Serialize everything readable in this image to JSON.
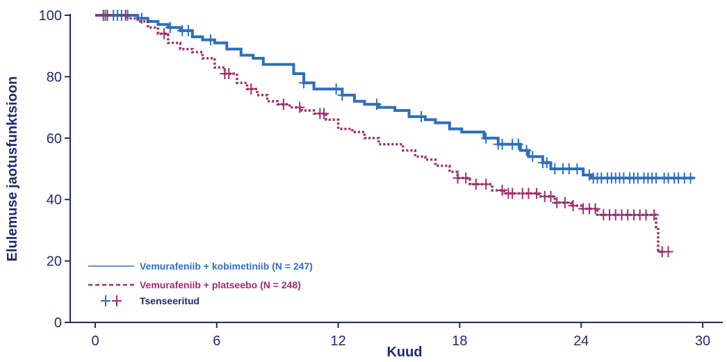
{
  "chart_data": {
    "type": "line",
    "title": "",
    "xlabel": "Kuud",
    "ylabel": "Elulemuse jaotusfunktsioon",
    "xlim": [
      0,
      30
    ],
    "ylim": [
      0,
      100
    ],
    "x_ticks": [
      0,
      6,
      12,
      18,
      24,
      30
    ],
    "y_ticks": [
      0,
      20,
      40,
      60,
      80,
      100
    ],
    "grid": false,
    "legend_position": "bottom-left",
    "series": [
      {
        "name": "Vemurafeniib + kobimetiniib (N = 247)",
        "color": "#2f6fba",
        "line_style": "solid",
        "x": [
          0,
          2.1,
          2.6,
          3.1,
          3.6,
          4.2,
          4.8,
          5.3,
          5.9,
          6.5,
          7.2,
          7.8,
          8.3,
          9.0,
          9.8,
          10.3,
          10.8,
          11.5,
          12.2,
          12.8,
          13.3,
          14.0,
          14.8,
          15.5,
          16.3,
          16.8,
          17.5,
          18.1,
          19.0,
          19.2,
          19.9,
          21.0,
          21.4,
          22.1,
          22.5,
          23.2,
          24.1,
          24.5,
          29.6
        ],
        "y": [
          100,
          99,
          98,
          97,
          96,
          95,
          93,
          92,
          91,
          89,
          87,
          86,
          84,
          84,
          81,
          78,
          76,
          76,
          74,
          72,
          71,
          70,
          69,
          67,
          66,
          65,
          63,
          62,
          62,
          60,
          58,
          56,
          54,
          52,
          50,
          50,
          48,
          47,
          47
        ]
      },
      {
        "name": "Vemurafeniib + platseebo (N = 248)",
        "color": "#9b2d6b",
        "line_style": "dotted",
        "x": [
          0,
          1.6,
          2.1,
          2.6,
          3.1,
          3.6,
          4.2,
          4.8,
          5.3,
          5.9,
          6.4,
          7.0,
          7.5,
          8.0,
          8.5,
          9.0,
          9.6,
          10.2,
          10.8,
          11.4,
          12.0,
          12.7,
          13.3,
          14.0,
          14.6,
          15.2,
          15.8,
          16.3,
          16.8,
          17.5,
          17.9,
          18.5,
          19.0,
          19.6,
          20.2,
          21.0,
          21.9,
          22.7,
          23.5,
          24.0,
          24.8,
          25.5,
          27.2,
          27.7,
          27.8,
          28.1
        ],
        "y": [
          100,
          99,
          98,
          96,
          94,
          91,
          89,
          88,
          86,
          83,
          81,
          78,
          76,
          74,
          72,
          71,
          70,
          69,
          68,
          66,
          63,
          62,
          60,
          58,
          58,
          56,
          54,
          53,
          51,
          49,
          47,
          45,
          45,
          43,
          42,
          42,
          41,
          39,
          38,
          37,
          35,
          35,
          35,
          31,
          23,
          23
        ]
      }
    ],
    "censored": {
      "label": "Tsenseeritud",
      "symbol": "+",
      "series_0": [
        0.5,
        0.9,
        1.1,
        1.3,
        1.6,
        2.3,
        3.7,
        4.3,
        4.6,
        5.7,
        10.3,
        11.9,
        12.2,
        13.9,
        16.1,
        19.3,
        19.9,
        20.1,
        20.6,
        20.9,
        21.3,
        21.6,
        22.1,
        22.3,
        22.7,
        23.1,
        23.4,
        23.8,
        24.4,
        24.6,
        24.8,
        25.0,
        25.3,
        25.5,
        25.7,
        25.9,
        26.1,
        26.4,
        26.6,
        26.8,
        27.1,
        27.3,
        27.5,
        27.7,
        28.1,
        28.3,
        28.6,
        28.8,
        29.1,
        29.4
      ],
      "series_1": [
        0.4,
        0.6,
        1.5,
        3.4,
        6.4,
        6.6,
        7.7,
        9.3,
        10.1,
        11.1,
        11.3,
        17.9,
        18.3,
        18.8,
        19.3,
        20.1,
        20.4,
        20.6,
        21.1,
        21.4,
        21.8,
        22.2,
        22.5,
        22.8,
        23.2,
        23.6,
        24.1,
        24.4,
        24.7,
        25.1,
        25.4,
        25.7,
        26.0,
        26.3,
        26.6,
        26.9,
        27.2,
        27.6,
        28.0,
        28.3
      ]
    }
  }
}
